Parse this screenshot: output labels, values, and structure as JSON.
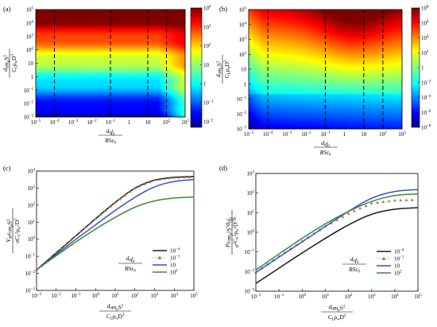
{
  "figure": {
    "panels": [
      {
        "id": "a",
        "label": "(a)"
      },
      {
        "id": "b",
        "label": "(b)"
      },
      {
        "id": "c",
        "label": "(c)"
      },
      {
        "id": "d",
        "label": "(d)"
      }
    ]
  },
  "chart_data": [
    {
      "panel": "(a)",
      "type": "heatmap",
      "xlabel": "d0 f0 / (R S ε0)",
      "ylabel": "d0 mp S_t^2 / (C_L ρw D^3)",
      "xscale": "log",
      "yscale": "log",
      "xlim": [
        1e-05,
        1000.0
      ],
      "ylim": [
        0.001,
        100000.0
      ],
      "x_ticks_exp": [
        -5,
        -4,
        -3,
        -2,
        -1,
        0,
        1,
        2,
        3
      ],
      "y_ticks_exp": [
        -3,
        -2,
        -1,
        0,
        1,
        2,
        3,
        4,
        5
      ],
      "dashed_lines_x": [
        0.0001,
        0.1,
        10,
        100
      ],
      "colorbar": {
        "scale": "log",
        "range": [
          0.005,
          10000
        ],
        "ticks_exp": [
          -2,
          -1,
          0,
          1,
          2,
          3,
          4
        ]
      },
      "colormap": "jet"
    },
    {
      "panel": "(b)",
      "type": "heatmap",
      "xlabel": "d0 f0 / (R S ε0)",
      "ylabel": "d0 mp S_t^2 / (C_L ρw D^3)",
      "xscale": "log",
      "yscale": "log",
      "xlim": [
        1e-05,
        1000.0
      ],
      "ylim": [
        0.001,
        100000.0
      ],
      "x_ticks_exp": [
        -5,
        -4,
        -3,
        -2,
        -1,
        0,
        1,
        2,
        3
      ],
      "y_ticks_exp": [
        -3,
        -2,
        -1,
        0,
        1,
        2,
        3,
        4,
        5
      ],
      "dashed_lines_x": [
        0.0001,
        0.1,
        10,
        100
      ],
      "colorbar": {
        "scale": "log",
        "range": [
          1e-08,
          100000000.0
        ],
        "ticks_exp": [
          -8,
          -6,
          -4,
          -2,
          0,
          2,
          4,
          6,
          8
        ]
      },
      "colormap": "jet"
    },
    {
      "panel": "(c)",
      "type": "line",
      "xlabel": "d0 mp S_t^2 / (C_L ρw D^3)",
      "ylabel": "V_M ε0 mp S_t^2 / (σ C_L^2 ρw^2 D^5)",
      "xscale": "log",
      "yscale": "log",
      "xlim": [
        0.001,
        100000.0
      ],
      "ylim": [
        0.001,
        10000.0
      ],
      "x_ticks_exp": [
        -3,
        -2,
        -1,
        0,
        1,
        2,
        3,
        4,
        5
      ],
      "y_ticks_exp": [
        -3,
        -2,
        -1,
        0,
        1,
        2,
        3,
        4
      ],
      "legend_title": "d0 f0 / (R S ε0)",
      "legend_position": "bottom-right",
      "series": [
        {
          "name": "10^-4",
          "color": "#1a1a1a",
          "marker": "none",
          "x": [
            0.001,
            0.01,
            0.1,
            1,
            10,
            100,
            1000,
            10000,
            100000
          ],
          "y": [
            0.016,
            0.16,
            1.6,
            16,
            150,
            1100,
            3200,
            4400,
            4700
          ]
        },
        {
          "name": "10^-1",
          "color": "#a0714a",
          "marker": "triangle",
          "x": [
            0.001,
            0.01,
            0.1,
            1,
            10,
            100,
            1000,
            10000,
            100000
          ],
          "y": [
            0.016,
            0.16,
            1.6,
            16,
            140,
            1000,
            3000,
            4200,
            4500
          ]
        },
        {
          "name": "10",
          "color": "#3b4fc4",
          "marker": "none",
          "x": [
            0.001,
            0.01,
            0.1,
            1,
            10,
            100,
            1000,
            10000,
            100000
          ],
          "y": [
            0.016,
            0.13,
            1.0,
            7,
            50,
            300,
            1300,
            2600,
            3200
          ]
        },
        {
          "name": "10^2",
          "color": "#3a8a3a",
          "marker": "none",
          "x": [
            0.001,
            0.01,
            0.1,
            1,
            10,
            100,
            1000,
            10000,
            100000
          ],
          "y": [
            0.016,
            0.11,
            0.7,
            4,
            20,
            80,
            190,
            270,
            300
          ]
        }
      ]
    },
    {
      "panel": "(d)",
      "type": "line",
      "xlabel": "d0 mp S_t^2 / (C_L ρw D^3)",
      "ylabel": "P ε0 mp^2 S_t^3 d0 f0 / (σ^2 C_L^2 ρw^2 D^5 S)",
      "xscale": "log",
      "yscale": "log",
      "xlim": [
        0.01,
        100000.0
      ],
      "ylim": [
        0.001,
        1000.0
      ],
      "x_ticks_exp": [
        -2,
        -1,
        0,
        1,
        2,
        3,
        4,
        5
      ],
      "y_ticks_exp": [
        -3,
        -2,
        -1,
        0,
        1,
        2,
        3
      ],
      "legend_title": "d0 f0 / (R S ε0)",
      "legend_position": "bottom-right",
      "series": [
        {
          "name": "10^-4",
          "color": "#1a1a1a",
          "marker": "none",
          "x": [
            0.01,
            0.1,
            1,
            10,
            100,
            1000,
            10000,
            100000
          ],
          "y": [
            0.0025,
            0.015,
            0.09,
            0.5,
            2.5,
            9,
            16,
            18
          ]
        },
        {
          "name": "10^-1",
          "color": "#a0714a",
          "marker": "triangle",
          "x": [
            0.01,
            0.1,
            1,
            10,
            100,
            1000,
            10000,
            100000
          ],
          "y": [
            0.009,
            0.06,
            0.35,
            2,
            9,
            30,
            42,
            45
          ]
        },
        {
          "name": "10",
          "color": "#3b4fc4",
          "marker": "none",
          "x": [
            0.01,
            0.1,
            1,
            10,
            100,
            1000,
            10000,
            100000
          ],
          "y": [
            0.009,
            0.055,
            0.33,
            2,
            12,
            60,
            130,
            150
          ]
        },
        {
          "name": "10^2",
          "color": "#3a8a3a",
          "marker": "none",
          "x": [
            0.01,
            0.1,
            1,
            10,
            100,
            1000,
            10000,
            100000
          ],
          "y": [
            0.012,
            0.08,
            0.5,
            2.8,
            12,
            40,
            80,
            90
          ]
        }
      ]
    }
  ]
}
